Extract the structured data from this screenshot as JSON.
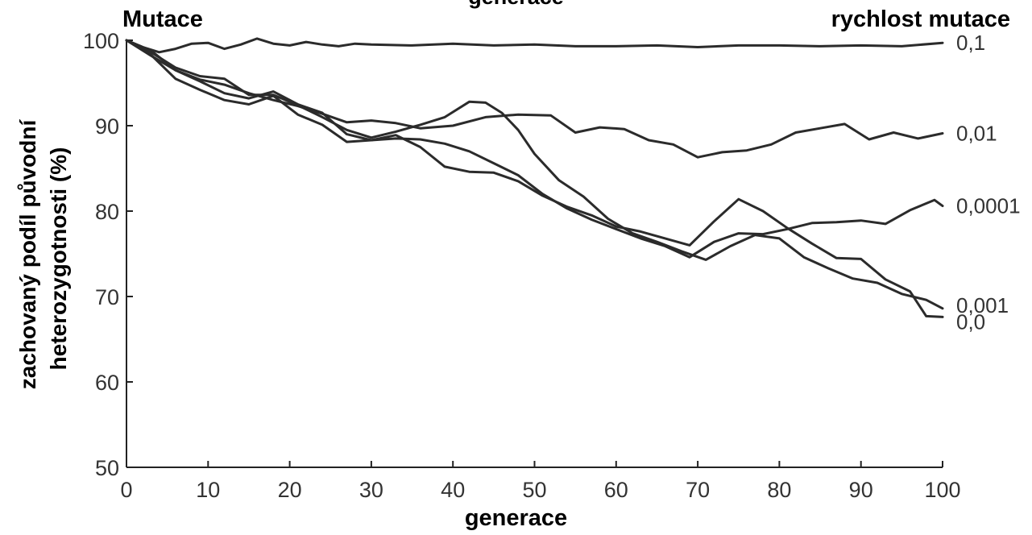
{
  "chart_data": {
    "type": "line",
    "title": "generace",
    "panel_label": "Mutace",
    "legend_title": "rychlost mutace",
    "xlabel": "generace",
    "ylabel_lines": [
      "zachovaný podíl původní",
      "heterozygotnosti (%)"
    ],
    "xlim": [
      0,
      100
    ],
    "ylim": [
      50,
      100
    ],
    "xticks": [
      "0",
      "10",
      "20",
      "30",
      "40",
      "50",
      "60",
      "70",
      "80",
      "90",
      "100"
    ],
    "yticks": [
      "50",
      "60",
      "70",
      "80",
      "90",
      "100"
    ],
    "grid": false,
    "series": [
      {
        "name": "0,1",
        "x": [
          0,
          2,
          4,
          6,
          8,
          10,
          12,
          14,
          16,
          18,
          20,
          22,
          24,
          26,
          28,
          30,
          35,
          40,
          45,
          50,
          55,
          60,
          65,
          70,
          75,
          80,
          85,
          90,
          95,
          100
        ],
        "y": [
          100,
          99.2,
          98.6,
          99.0,
          99.6,
          99.7,
          99.0,
          99.5,
          100.2,
          99.6,
          99.4,
          99.8,
          99.5,
          99.3,
          99.6,
          99.5,
          99.4,
          99.6,
          99.4,
          99.5,
          99.3,
          99.3,
          99.4,
          99.2,
          99.4,
          99.4,
          99.3,
          99.4,
          99.3,
          99.7
        ]
      },
      {
        "name": "0,01",
        "x": [
          0,
          3,
          6,
          9,
          12,
          15,
          18,
          21,
          24,
          27,
          30,
          33,
          36,
          40,
          44,
          48,
          52,
          55,
          58,
          61,
          64,
          67,
          70,
          73,
          76,
          79,
          82,
          85,
          88,
          91,
          94,
          97,
          100
        ],
        "y": [
          100,
          98.2,
          96.5,
          95.4,
          94.8,
          93.8,
          93.0,
          92.3,
          91.4,
          90.4,
          90.6,
          90.3,
          89.7,
          90.0,
          91.0,
          91.3,
          91.2,
          89.2,
          89.8,
          89.6,
          88.3,
          87.8,
          86.3,
          86.9,
          87.1,
          87.8,
          89.2,
          89.7,
          90.2,
          88.4,
          89.2,
          88.5,
          89.1
        ]
      },
      {
        "name": "0,0001",
        "x": [
          0,
          3,
          6,
          9,
          12,
          15,
          18,
          21,
          24,
          27,
          30,
          33,
          36,
          39,
          42,
          45,
          48,
          51,
          54,
          57,
          60,
          63,
          66,
          69,
          72,
          75,
          78,
          81,
          84,
          87,
          90,
          93,
          96,
          99,
          100
        ],
        "y": [
          100,
          98.8,
          96.5,
          95.2,
          93.8,
          93.2,
          94.0,
          92.5,
          91.5,
          89.0,
          88.3,
          88.5,
          88.4,
          87.9,
          87.0,
          85.6,
          84.2,
          82.0,
          80.3,
          79.0,
          77.9,
          76.8,
          75.9,
          74.6,
          76.4,
          77.4,
          77.3,
          77.9,
          78.6,
          78.7,
          78.9,
          78.5,
          80.1,
          81.3,
          80.6
        ]
      },
      {
        "name": "0,001",
        "x": [
          0,
          3,
          6,
          9,
          12,
          15,
          18,
          21,
          24,
          27,
          30,
          33,
          36,
          39,
          42,
          44,
          46,
          48,
          50,
          53,
          56,
          59,
          62,
          65,
          68,
          71,
          74,
          77,
          80,
          83,
          86,
          89,
          92,
          95,
          98,
          100
        ],
        "y": [
          100,
          98.6,
          96.8,
          95.8,
          95.5,
          93.6,
          93.6,
          92.4,
          91.0,
          89.5,
          88.6,
          89.3,
          90.1,
          91.0,
          92.8,
          92.7,
          91.5,
          89.5,
          86.7,
          83.6,
          81.7,
          79.1,
          77.4,
          76.4,
          75.3,
          74.3,
          75.9,
          77.2,
          76.8,
          74.6,
          73.3,
          72.1,
          71.6,
          70.3,
          69.6,
          68.6
        ]
      },
      {
        "name": "0,0",
        "x": [
          0,
          3,
          6,
          9,
          12,
          15,
          18,
          21,
          24,
          27,
          30,
          33,
          36,
          39,
          42,
          45,
          48,
          51,
          54,
          57,
          60,
          63,
          66,
          69,
          72,
          75,
          78,
          81,
          84,
          87,
          90,
          93,
          96,
          98,
          100
        ],
        "y": [
          100,
          98.3,
          95.5,
          94.2,
          93.0,
          92.5,
          93.5,
          91.3,
          90.1,
          88.1,
          88.3,
          88.9,
          87.5,
          85.2,
          84.6,
          84.5,
          83.5,
          81.8,
          80.5,
          79.5,
          78.2,
          77.6,
          76.8,
          76.0,
          78.8,
          81.4,
          80.0,
          78.0,
          76.2,
          74.5,
          74.4,
          72.0,
          70.6,
          67.7,
          67.6
        ]
      }
    ]
  }
}
